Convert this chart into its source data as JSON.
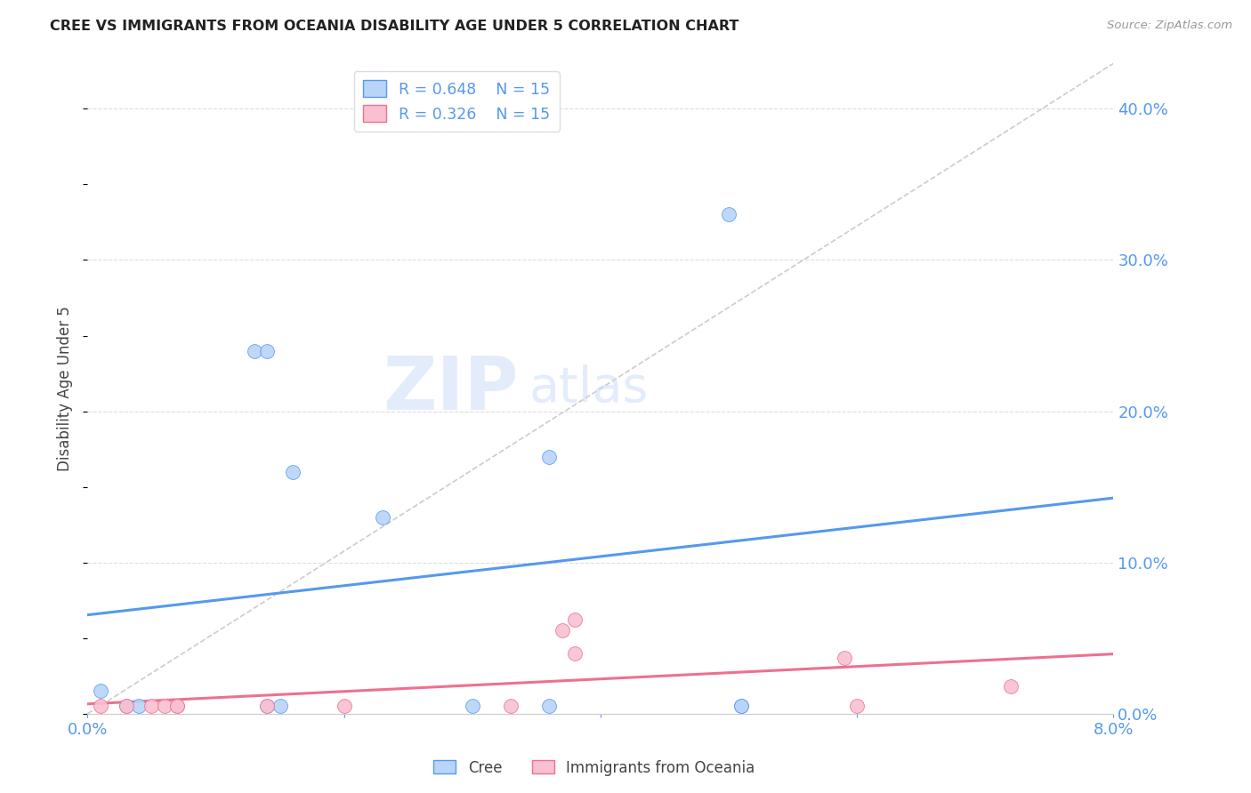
{
  "title": "CREE VS IMMIGRANTS FROM OCEANIA DISABILITY AGE UNDER 5 CORRELATION CHART",
  "source": "Source: ZipAtlas.com",
  "ylabel": "Disability Age Under 5",
  "right_ytick_labels": [
    "40.0%",
    "30.0%",
    "20.0%",
    "10.0%",
    "0.0%"
  ],
  "right_ytick_vals": [
    0.4,
    0.3,
    0.2,
    0.1,
    0.0
  ],
  "xlim": [
    0.0,
    0.08
  ],
  "ylim": [
    0.0,
    0.43
  ],
  "x_ticks": [
    0.0,
    0.02,
    0.04,
    0.06,
    0.08
  ],
  "x_tick_labels": [
    "0.0%",
    "",
    "",
    "",
    "8.0%"
  ],
  "cree_color": "#b8d4f8",
  "cree_line_color": "#5599ee",
  "oceania_color": "#f8c0d0",
  "oceania_line_color": "#ee7090",
  "ref_line_color": "#cccccc",
  "legend_cree_r": "R = 0.648",
  "legend_cree_n": "N = 15",
  "legend_oceania_r": "R = 0.326",
  "legend_oceania_n": "N = 15",
  "watermark_zip": "ZIP",
  "watermark_atlas": "atlas",
  "cree_x": [
    0.001,
    0.003,
    0.004,
    0.013,
    0.014,
    0.014,
    0.015,
    0.016,
    0.023,
    0.03,
    0.036,
    0.036,
    0.05,
    0.051,
    0.051
  ],
  "cree_y": [
    0.015,
    0.005,
    0.005,
    0.24,
    0.24,
    0.005,
    0.005,
    0.16,
    0.13,
    0.005,
    0.17,
    0.005,
    0.33,
    0.005,
    0.005
  ],
  "oceania_x": [
    0.001,
    0.003,
    0.005,
    0.006,
    0.007,
    0.007,
    0.014,
    0.02,
    0.033,
    0.037,
    0.038,
    0.038,
    0.059,
    0.06,
    0.072
  ],
  "oceania_y": [
    0.005,
    0.005,
    0.005,
    0.005,
    0.005,
    0.005,
    0.005,
    0.005,
    0.005,
    0.055,
    0.04,
    0.062,
    0.037,
    0.005,
    0.018
  ],
  "background_color": "#ffffff",
  "grid_color": "#dddddd",
  "title_color": "#222222",
  "axis_label_color": "#444444",
  "right_axis_label_color": "#5599ee",
  "bottom_axis_label_color": "#5599ee"
}
